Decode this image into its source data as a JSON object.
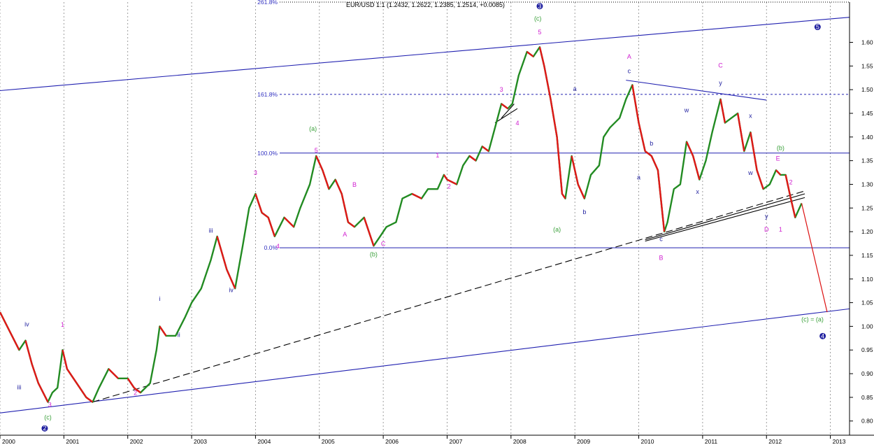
{
  "chart_data": {
    "type": "line",
    "title": "EUR/USD 1:1 (1.2432, 1.2622, 1.2385, 1.2514, +0.0085)",
    "xlabel": "",
    "ylabel": "",
    "xlim": [
      2000.0,
      2013.3
    ],
    "ylim": [
      0.77,
      1.685
    ],
    "grid": true,
    "x_ticks": [
      "2000",
      "2001",
      "2002",
      "2003",
      "2004",
      "2005",
      "2006",
      "2007",
      "2008",
      "2009",
      "2010",
      "2011",
      "2012",
      "2013"
    ],
    "y_ticks": [
      "0.80",
      "0.85",
      "0.90",
      "0.95",
      "1.00",
      "1.05",
      "1.10",
      "1.15",
      "1.20",
      "1.25",
      "1.30",
      "1.35",
      "1.40",
      "1.45",
      "1.50",
      "1.55",
      "1.60"
    ],
    "series": [
      {
        "color": "#228b22",
        "points": [
          [
            2000.0,
            1.03
          ],
          [
            2000.15,
            0.99
          ],
          [
            2000.3,
            0.95
          ],
          [
            2000.4,
            0.97
          ],
          [
            2000.5,
            0.92
          ],
          [
            2000.6,
            0.88
          ],
          [
            2000.75,
            0.84
          ],
          [
            2000.82,
            0.86
          ],
          [
            2000.9,
            0.87
          ],
          [
            2000.98,
            0.95
          ],
          [
            2001.05,
            0.91
          ],
          [
            2001.2,
            0.88
          ],
          [
            2001.35,
            0.85
          ],
          [
            2001.45,
            0.84
          ],
          [
            2001.55,
            0.87
          ],
          [
            2001.7,
            0.91
          ],
          [
            2001.85,
            0.89
          ],
          [
            2002.0,
            0.89
          ],
          [
            2002.1,
            0.87
          ],
          [
            2002.2,
            0.86
          ],
          [
            2002.35,
            0.88
          ],
          [
            2002.45,
            0.95
          ],
          [
            2002.5,
            1.0
          ],
          [
            2002.6,
            0.98
          ],
          [
            2002.75,
            0.98
          ],
          [
            2002.9,
            1.02
          ],
          [
            2003.0,
            1.05
          ],
          [
            2003.15,
            1.08
          ],
          [
            2003.3,
            1.14
          ],
          [
            2003.4,
            1.19
          ],
          [
            2003.55,
            1.12
          ],
          [
            2003.68,
            1.08
          ],
          [
            2003.8,
            1.17
          ],
          [
            2003.9,
            1.25
          ],
          [
            2004.0,
            1.28
          ],
          [
            2004.1,
            1.24
          ],
          [
            2004.2,
            1.23
          ],
          [
            2004.3,
            1.19
          ],
          [
            2004.45,
            1.23
          ],
          [
            2004.6,
            1.21
          ],
          [
            2004.7,
            1.25
          ],
          [
            2004.85,
            1.3
          ],
          [
            2004.95,
            1.36
          ],
          [
            2005.05,
            1.33
          ],
          [
            2005.15,
            1.29
          ],
          [
            2005.25,
            1.31
          ],
          [
            2005.35,
            1.28
          ],
          [
            2005.45,
            1.22
          ],
          [
            2005.55,
            1.21
          ],
          [
            2005.7,
            1.23
          ],
          [
            2005.85,
            1.17
          ],
          [
            2005.95,
            1.19
          ],
          [
            2006.05,
            1.21
          ],
          [
            2006.2,
            1.22
          ],
          [
            2006.3,
            1.27
          ],
          [
            2006.45,
            1.28
          ],
          [
            2006.6,
            1.27
          ],
          [
            2006.7,
            1.29
          ],
          [
            2006.85,
            1.29
          ],
          [
            2006.95,
            1.32
          ],
          [
            2007.0,
            1.31
          ],
          [
            2007.15,
            1.3
          ],
          [
            2007.25,
            1.34
          ],
          [
            2007.35,
            1.36
          ],
          [
            2007.45,
            1.35
          ],
          [
            2007.55,
            1.38
          ],
          [
            2007.65,
            1.37
          ],
          [
            2007.75,
            1.42
          ],
          [
            2007.85,
            1.47
          ],
          [
            2007.95,
            1.46
          ],
          [
            2008.02,
            1.47
          ],
          [
            2008.12,
            1.53
          ],
          [
            2008.25,
            1.58
          ],
          [
            2008.35,
            1.57
          ],
          [
            2008.45,
            1.59
          ],
          [
            2008.52,
            1.55
          ],
          [
            2008.62,
            1.48
          ],
          [
            2008.72,
            1.4
          ],
          [
            2008.8,
            1.28
          ],
          [
            2008.85,
            1.27
          ],
          [
            2008.95,
            1.36
          ],
          [
            2009.05,
            1.3
          ],
          [
            2009.15,
            1.27
          ],
          [
            2009.25,
            1.32
          ],
          [
            2009.38,
            1.34
          ],
          [
            2009.45,
            1.4
          ],
          [
            2009.55,
            1.42
          ],
          [
            2009.7,
            1.44
          ],
          [
            2009.8,
            1.48
          ],
          [
            2009.9,
            1.51
          ],
          [
            2010.0,
            1.43
          ],
          [
            2010.1,
            1.37
          ],
          [
            2010.2,
            1.36
          ],
          [
            2010.3,
            1.33
          ],
          [
            2010.4,
            1.2
          ],
          [
            2010.45,
            1.22
          ],
          [
            2010.55,
            1.29
          ],
          [
            2010.65,
            1.3
          ],
          [
            2010.75,
            1.39
          ],
          [
            2010.85,
            1.36
          ],
          [
            2010.95,
            1.31
          ],
          [
            2011.05,
            1.35
          ],
          [
            2011.15,
            1.41
          ],
          [
            2011.28,
            1.48
          ],
          [
            2011.35,
            1.43
          ],
          [
            2011.45,
            1.44
          ],
          [
            2011.55,
            1.45
          ],
          [
            2011.65,
            1.37
          ],
          [
            2011.75,
            1.41
          ],
          [
            2011.85,
            1.33
          ],
          [
            2011.95,
            1.29
          ],
          [
            2012.05,
            1.3
          ],
          [
            2012.15,
            1.33
          ],
          [
            2012.22,
            1.32
          ],
          [
            2012.3,
            1.32
          ],
          [
            2012.38,
            1.27
          ],
          [
            2012.45,
            1.23
          ],
          [
            2012.55,
            1.26
          ]
        ]
      },
      {
        "color": "#dc1010",
        "points": [
          [
            2012.55,
            1.26
          ],
          [
            2012.95,
            1.03
          ]
        ]
      }
    ],
    "annotations": {
      "fib_levels": [
        {
          "label": "261.8%",
          "y": 1.685,
          "style": "dotted"
        },
        {
          "label": "161.8%",
          "y": 1.49,
          "style": "dashed"
        },
        {
          "label": "100.0%",
          "y": 1.366,
          "style": "solid"
        },
        {
          "label": "0.0%",
          "y": 1.166,
          "style": "solid"
        }
      ],
      "trendlines": [
        {
          "from": [
            2000.0,
            1.498
          ],
          "to": [
            2013.3,
            1.653
          ],
          "color": "#2020b0",
          "style": "solid"
        },
        {
          "from": [
            2000.0,
            0.817
          ],
          "to": [
            2013.3,
            1.037
          ],
          "color": "#2020b0",
          "style": "solid"
        },
        {
          "from": [
            2001.45,
            0.84
          ],
          "to": [
            2012.6,
            1.286
          ],
          "color": "#000000",
          "style": "dashed"
        },
        {
          "from": [
            2010.1,
            1.183
          ],
          "to": [
            2012.6,
            1.28
          ],
          "color": "#000000",
          "style": "solid"
        },
        {
          "from": [
            2010.1,
            1.18
          ],
          "to": [
            2012.6,
            1.272
          ],
          "color": "#000000",
          "style": "solid"
        },
        {
          "from": [
            2009.8,
            1.52
          ],
          "to": [
            2012.0,
            1.478
          ],
          "color": "#2020b0",
          "style": "solid"
        },
        {
          "from": [
            2007.75,
            1.43
          ],
          "to": [
            2008.1,
            1.46
          ],
          "color": "#000000",
          "style": "solid"
        },
        {
          "from": [
            2007.85,
            1.44
          ],
          "to": [
            2008.05,
            1.47
          ],
          "color": "#000000",
          "style": "solid"
        }
      ],
      "wave_labels": [
        {
          "t": "iv",
          "x": 2000.42,
          "y": 1.0,
          "c": "#1f1f9f"
        },
        {
          "t": "1",
          "x": 2000.98,
          "y": 0.999,
          "c": "#d020d0"
        },
        {
          "t": "iii",
          "x": 2000.3,
          "y": 0.867,
          "c": "#1f1f9f"
        },
        {
          "t": "3",
          "x": 2000.78,
          "y": 0.83,
          "c": "#d020d0"
        },
        {
          "t": "(c)",
          "x": 2000.75,
          "y": 0.803,
          "c": "#3aa03a"
        },
        {
          "t": "2",
          "x": 2002.12,
          "y": 0.855,
          "c": "#d020d0"
        },
        {
          "t": "i",
          "x": 2002.5,
          "y": 1.054,
          "c": "#1f1f9f"
        },
        {
          "t": "ii",
          "x": 2002.8,
          "y": 0.978,
          "c": "#1f1f9f"
        },
        {
          "t": "iii",
          "x": 2003.3,
          "y": 1.198,
          "c": "#1f1f9f"
        },
        {
          "t": "iv",
          "x": 2003.62,
          "y": 1.072,
          "c": "#1f1f9f"
        },
        {
          "t": "3",
          "x": 2004.0,
          "y": 1.32,
          "c": "#d020d0"
        },
        {
          "t": "4",
          "x": 2004.35,
          "y": 1.165,
          "c": "#d020d0"
        },
        {
          "t": "(a)",
          "x": 2004.9,
          "y": 1.413,
          "c": "#3aa03a"
        },
        {
          "t": "5",
          "x": 2004.95,
          "y": 1.367,
          "c": "#d020d0"
        },
        {
          "t": "B",
          "x": 2005.55,
          "y": 1.295,
          "c": "#d020d0"
        },
        {
          "t": "A",
          "x": 2005.4,
          "y": 1.19,
          "c": "#d020d0"
        },
        {
          "t": "C",
          "x": 2006.0,
          "y": 1.17,
          "c": "#d020d0"
        },
        {
          "t": "(b)",
          "x": 2005.85,
          "y": 1.148,
          "c": "#3aa03a"
        },
        {
          "t": "1",
          "x": 2006.85,
          "y": 1.357,
          "c": "#d020d0"
        },
        {
          "t": "2",
          "x": 2007.03,
          "y": 1.291,
          "c": "#d020d0"
        },
        {
          "t": "3",
          "x": 2007.85,
          "y": 1.496,
          "c": "#d020d0"
        },
        {
          "t": "4",
          "x": 2008.1,
          "y": 1.425,
          "c": "#d020d0"
        },
        {
          "t": "3",
          "x": 2008.45,
          "y": 1.672,
          "c": "#1f1f9f",
          "circle": true
        },
        {
          "t": "(c)",
          "x": 2008.42,
          "y": 1.646,
          "c": "#3aa03a"
        },
        {
          "t": "5",
          "x": 2008.45,
          "y": 1.617,
          "c": "#d020d0"
        },
        {
          "t": "a",
          "x": 2009.0,
          "y": 1.497,
          "c": "#1f1f9f"
        },
        {
          "t": "(a)",
          "x": 2008.72,
          "y": 1.2,
          "c": "#3aa03a"
        },
        {
          "t": "b",
          "x": 2009.15,
          "y": 1.237,
          "c": "#1f1f9f"
        },
        {
          "t": "A",
          "x": 2009.85,
          "y": 1.565,
          "c": "#d020d0"
        },
        {
          "t": "c",
          "x": 2009.85,
          "y": 1.535,
          "c": "#1f1f9f"
        },
        {
          "t": "a",
          "x": 2010.0,
          "y": 1.31,
          "c": "#1f1f9f"
        },
        {
          "t": "b",
          "x": 2010.2,
          "y": 1.382,
          "c": "#1f1f9f"
        },
        {
          "t": "c",
          "x": 2010.35,
          "y": 1.18,
          "c": "#1f1f9f"
        },
        {
          "t": "B",
          "x": 2010.35,
          "y": 1.14,
          "c": "#d020d0"
        },
        {
          "t": "w",
          "x": 2010.75,
          "y": 1.452,
          "c": "#1f1f9f"
        },
        {
          "t": "x",
          "x": 2010.92,
          "y": 1.28,
          "c": "#1f1f9f"
        },
        {
          "t": "C",
          "x": 2011.28,
          "y": 1.547,
          "c": "#d020d0"
        },
        {
          "t": "y",
          "x": 2011.28,
          "y": 1.51,
          "c": "#1f1f9f"
        },
        {
          "t": "x",
          "x": 2011.75,
          "y": 1.44,
          "c": "#1f1f9f"
        },
        {
          "t": "w",
          "x": 2011.75,
          "y": 1.32,
          "c": "#1f1f9f"
        },
        {
          "t": "y",
          "x": 2012.0,
          "y": 1.228,
          "c": "#1f1f9f"
        },
        {
          "t": "D",
          "x": 2012.0,
          "y": 1.2,
          "c": "#d020d0"
        },
        {
          "t": "E",
          "x": 2012.18,
          "y": 1.35,
          "c": "#d020d0"
        },
        {
          "t": "(b)",
          "x": 2012.22,
          "y": 1.372,
          "c": "#3aa03a"
        },
        {
          "t": "2",
          "x": 2012.38,
          "y": 1.3,
          "c": "#d020d0"
        },
        {
          "t": "1",
          "x": 2012.22,
          "y": 1.2,
          "c": "#d020d0"
        },
        {
          "t": "5",
          "x": 2012.8,
          "y": 1.628,
          "c": "#1f1f9f",
          "circle": true
        },
        {
          "t": "(c) = (a)",
          "x": 2012.72,
          "y": 1.01,
          "c": "#3aa03a"
        },
        {
          "t": "4",
          "x": 2012.88,
          "y": 0.975,
          "c": "#1f1f9f",
          "circle": true
        },
        {
          "t": "2",
          "x": 2000.7,
          "y": 0.78,
          "c": "#1f1f9f",
          "circle": true
        }
      ]
    }
  }
}
